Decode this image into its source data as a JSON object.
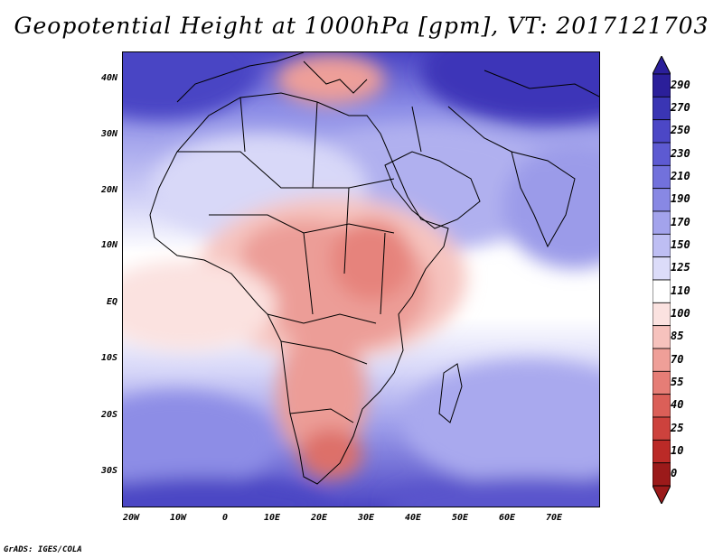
{
  "title": "Geopotential Height at 1000hPa [gpm], VT: 2017121703",
  "credit": "GrADS: IGES/COLA",
  "axes": {
    "lat_labels": [
      "40N",
      "30N",
      "20N",
      "10N",
      "EQ",
      "10S",
      "20S",
      "30S"
    ],
    "lon_labels": [
      "20W",
      "10W",
      "0",
      "10E",
      "20E",
      "30E",
      "40E",
      "50E",
      "60E",
      "70E"
    ]
  },
  "colorbar": {
    "levels": [
      "290",
      "270",
      "250",
      "230",
      "210",
      "190",
      "170",
      "150",
      "125",
      "110",
      "100",
      "85",
      "70",
      "55",
      "40",
      "25",
      "10",
      "0"
    ],
    "colors": [
      "#2b1f9a",
      "#3a35b4",
      "#4c47c6",
      "#5d5ad2",
      "#7271dc",
      "#8888e4",
      "#a3a3ec",
      "#bebef3",
      "#dcdcf9",
      "#ffffff",
      "#fbe2e0",
      "#f6c2bd",
      "#ef9f98",
      "#e67d76",
      "#db5f58",
      "#cd423d",
      "#bb2a27",
      "#9b1a1a"
    ]
  },
  "colors": {
    "deep_low": "#3d34b8",
    "low": "#8b8ce6",
    "mid_low": "#c7c8f4",
    "neutral": "#ffffff",
    "high_light": "#f8d3cf",
    "high": "#ec9d97",
    "peak": "#dd6f69"
  }
}
